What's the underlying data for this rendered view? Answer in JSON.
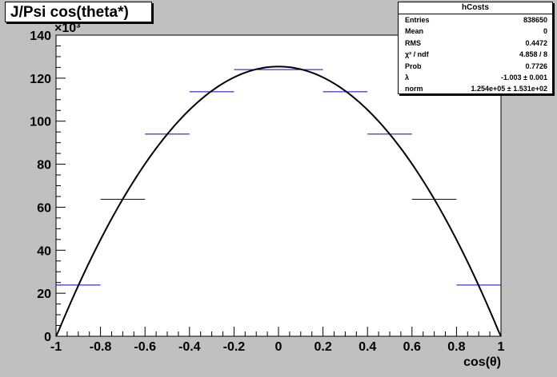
{
  "title": "J/Psi cos(theta*)",
  "stats": {
    "name": "hCosts",
    "rows": [
      {
        "label": "Entries",
        "value": "838650"
      },
      {
        "label": "Mean",
        "value": "0"
      },
      {
        "label": "RMS",
        "value": "0.4472"
      },
      {
        "label": "χ² / ndf",
        "value": "4.858 / 8"
      },
      {
        "label": "Prob",
        "value": "0.7726"
      },
      {
        "label": "λ",
        "value": "-1.003 ± 0.001"
      },
      {
        "label": "norm",
        "value": "1.254e+05 ± 1.531e+02"
      }
    ]
  },
  "chart_data": {
    "type": "line",
    "xlabel": "cos(θ)",
    "ylabel": "",
    "y_multiplier": "×10³",
    "xlim": [
      -1,
      1
    ],
    "ylim": [
      0,
      140
    ],
    "x_ticks": [
      "-1",
      "-0.8",
      "-0.6",
      "-0.4",
      "-0.2",
      "0",
      "0.2",
      "0.4",
      "0.6",
      "0.8",
      "1"
    ],
    "y_ticks": [
      "0",
      "20",
      "40",
      "60",
      "80",
      "100",
      "120",
      "140"
    ],
    "histogram": {
      "name": "hCosts",
      "color": "#0000cc",
      "bins": [
        {
          "x0": -1.0,
          "x1": -0.8,
          "y": 23.8
        },
        {
          "x0": -0.8,
          "x1": -0.6,
          "y": 63.7
        },
        {
          "x0": -0.6,
          "x1": -0.4,
          "y": 94.0
        },
        {
          "x0": -0.4,
          "x1": -0.2,
          "y": 113.7
        },
        {
          "x0": -0.2,
          "x1": 0.0,
          "y": 124.0
        },
        {
          "x0": 0.0,
          "x1": 0.2,
          "y": 124.0
        },
        {
          "x0": 0.2,
          "x1": 0.4,
          "y": 113.7
        },
        {
          "x0": 0.4,
          "x1": 0.6,
          "y": 94.0
        },
        {
          "x0": 0.6,
          "x1": 0.8,
          "y": 63.7
        },
        {
          "x0": 0.8,
          "x1": 1.0,
          "y": 23.8
        }
      ]
    },
    "fit": {
      "color": "#000000",
      "function": "norm*(1+lambda*x^2)",
      "norm": 125.4,
      "lambda": -1.003
    }
  }
}
